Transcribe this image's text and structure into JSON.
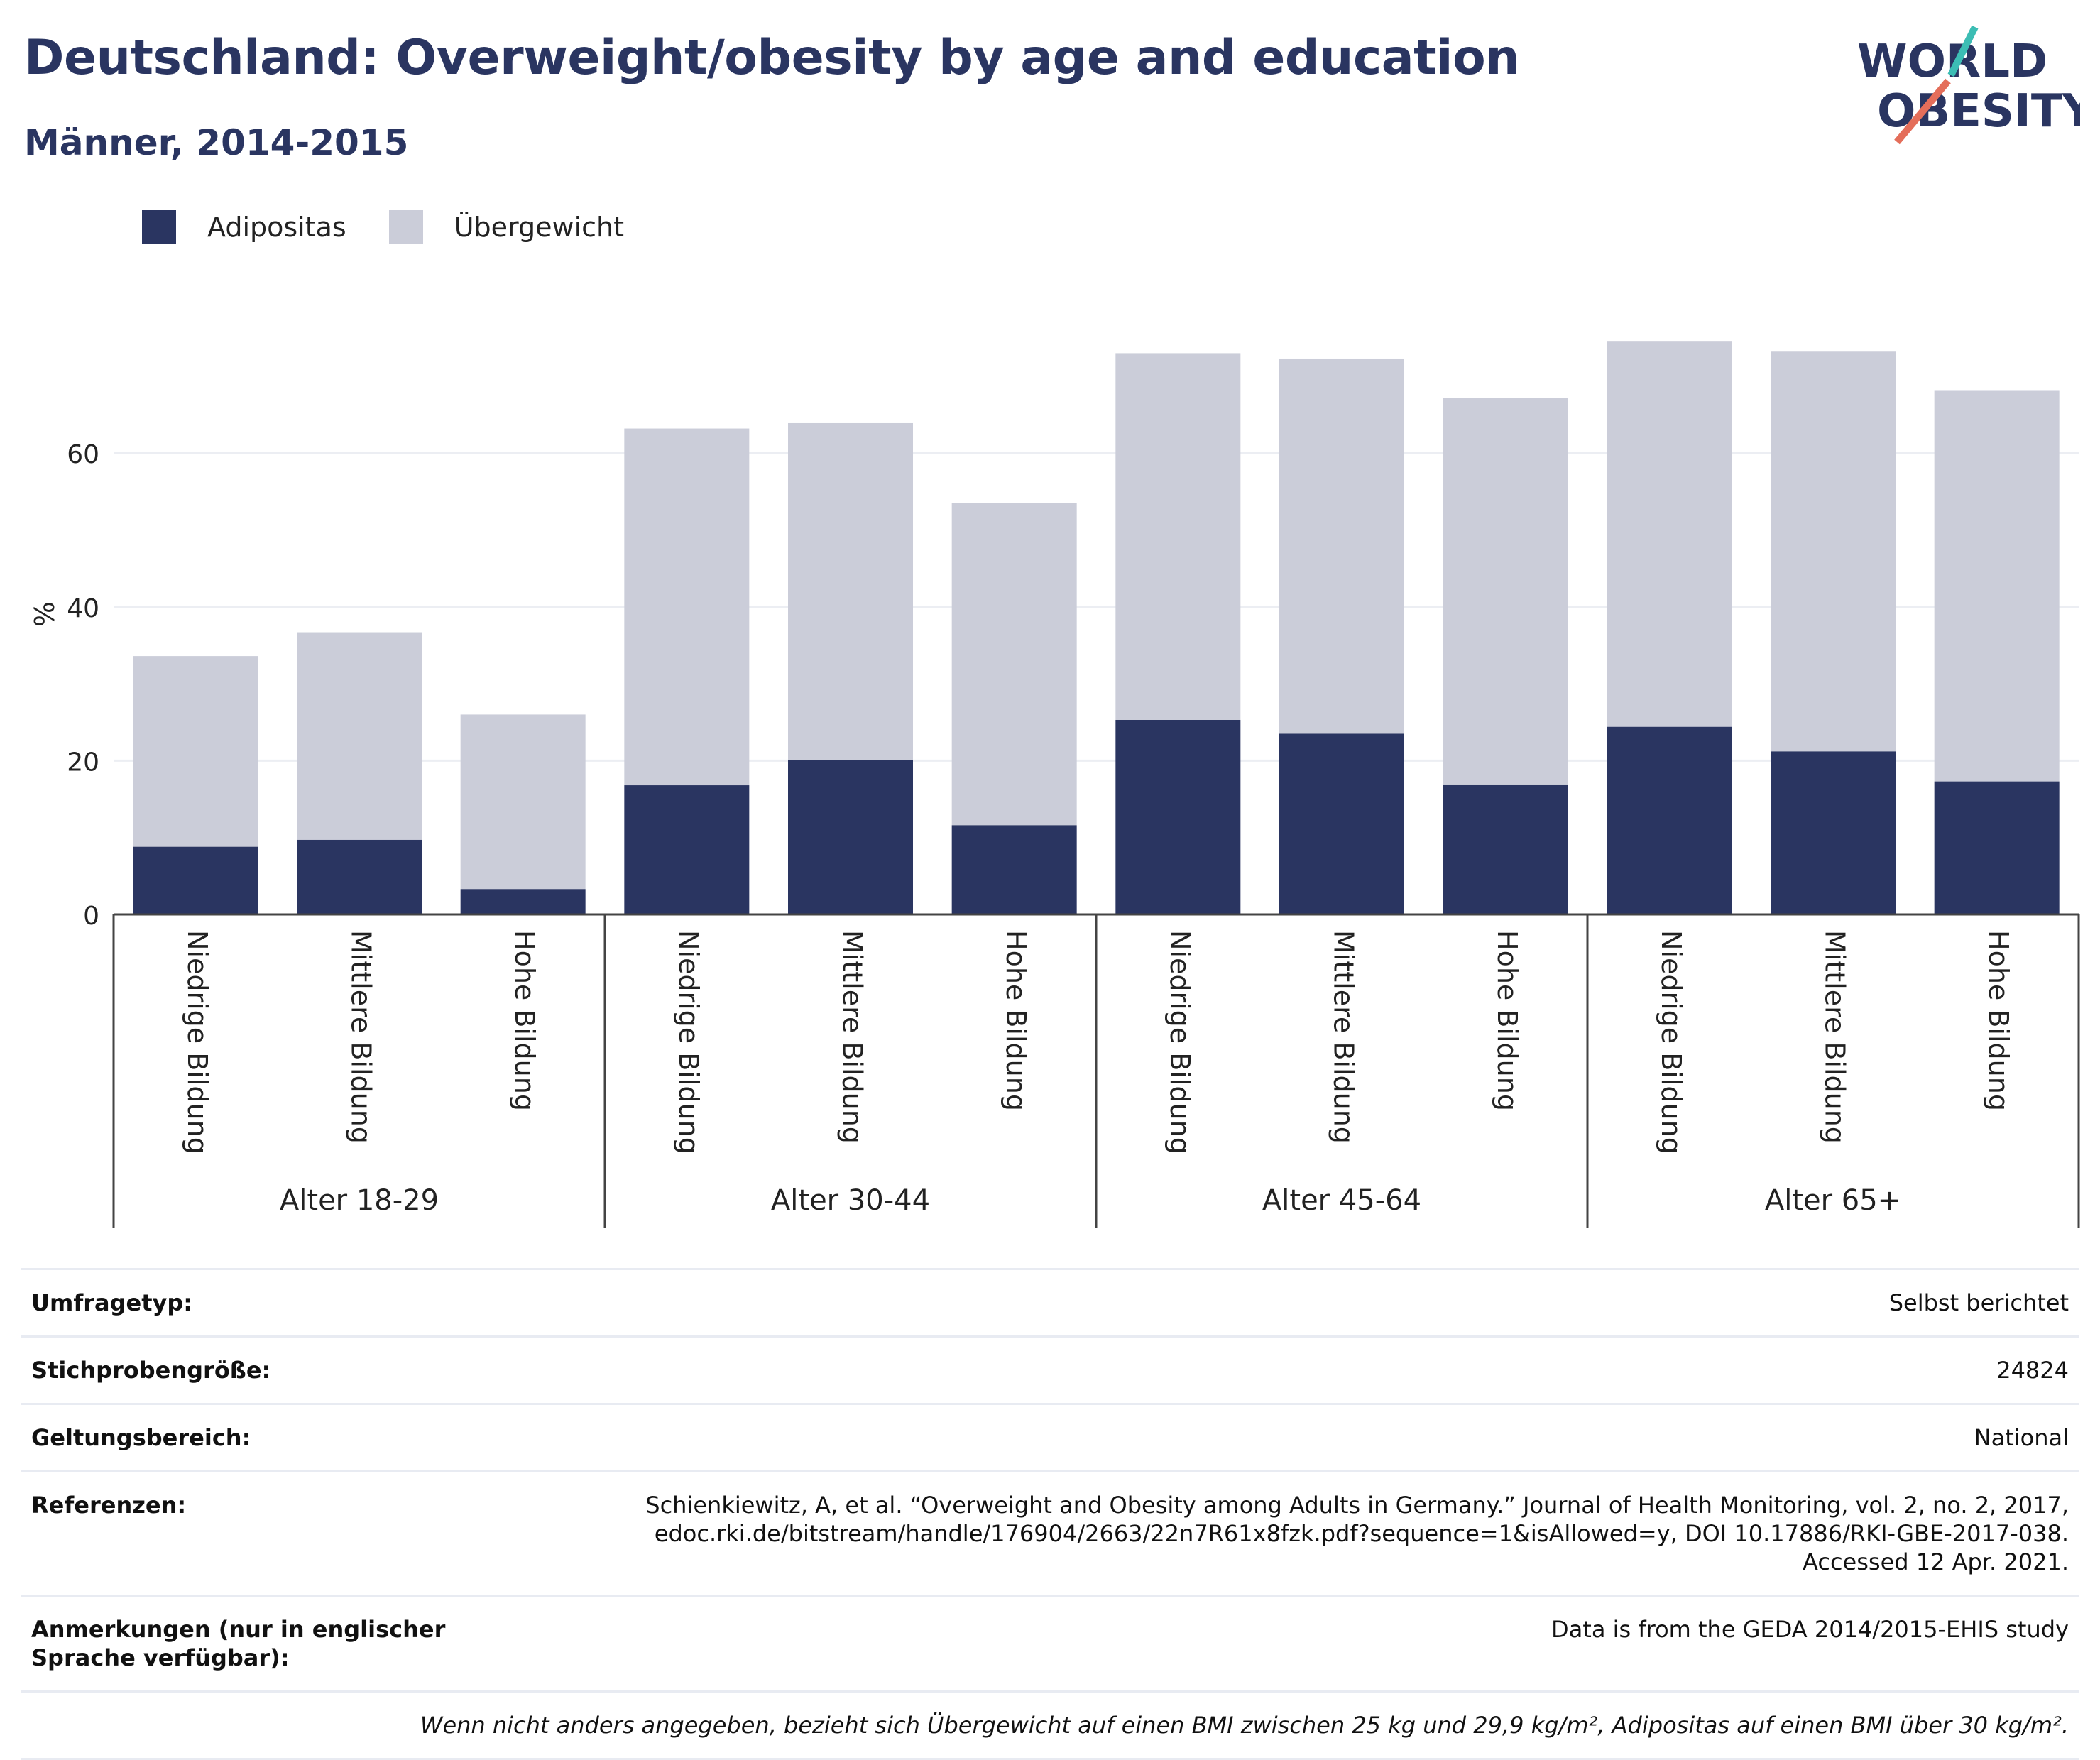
{
  "header": {
    "title": "Deutschland: Overweight/obesity by age and education",
    "subtitle": "Männer, 2014-2015",
    "logo": {
      "line1": "WORLD",
      "line2": "OBESITY"
    }
  },
  "legend": [
    {
      "label": "Adipositas",
      "color": "#2a3561"
    },
    {
      "label": "Übergewicht",
      "color": "#cbcdd9"
    }
  ],
  "chart_data": {
    "type": "bar",
    "stacked": true,
    "ylabel": "%",
    "ylim": [
      0,
      80
    ],
    "yticks": [
      0,
      20,
      40,
      60
    ],
    "grid": true,
    "legend_position": "top-left",
    "groups": [
      {
        "label": "Alter 18-29",
        "categories": [
          "Niedrige Bildung",
          "Mittlere Bildung",
          "Hohe Bildung"
        ]
      },
      {
        "label": "Alter 30-44",
        "categories": [
          "Niedrige Bildung",
          "Mittlere Bildung",
          "Hohe Bildung"
        ]
      },
      {
        "label": "Alter 45-64",
        "categories": [
          "Niedrige Bildung",
          "Mittlere Bildung",
          "Hohe Bildung"
        ]
      },
      {
        "label": "Alter 65+",
        "categories": [
          "Niedrige Bildung",
          "Mittlere Bildung",
          "Hohe Bildung"
        ]
      }
    ],
    "series": [
      {
        "name": "Adipositas",
        "color": "#2a3561",
        "values": [
          8.8,
          9.7,
          3.3,
          16.8,
          20.1,
          11.6,
          25.3,
          23.5,
          16.9,
          24.4,
          21.2,
          17.3
        ]
      },
      {
        "name": "Übergewicht",
        "color": "#cbcdd9",
        "values": [
          24.8,
          27.0,
          22.7,
          46.4,
          43.8,
          41.9,
          47.7,
          48.8,
          50.3,
          50.1,
          52.0,
          50.8
        ]
      }
    ]
  },
  "meta": [
    {
      "key": "Umfragetyp:",
      "lines": [
        "Selbst berichtet"
      ]
    },
    {
      "key": "Stichprobengröße:",
      "lines": [
        "24824"
      ]
    },
    {
      "key": "Geltungsbereich:",
      "lines": [
        "National"
      ]
    },
    {
      "key": "Referenzen:",
      "lines": [
        "Schienkiewitz, A, et al. “Overweight and Obesity among Adults in Germany.” Journal of Health Monitoring, vol. 2, no. 2, 2017,",
        "edoc.rki.de/bitstream/handle/176904/2663/22n7R61x8fzk.pdf?sequence=1&isAllowed=y, DOI 10.17886/RKI-GBE-2017-038.",
        "Accessed 12 Apr. 2021."
      ]
    },
    {
      "key": "Anmerkungen (nur in englischer Sprache verfügbar):",
      "lines": [
        "Data is from the GEDA 2014/2015-EHIS study"
      ]
    }
  ],
  "footnote": "Wenn nicht anders angegeben, bezieht sich Übergewicht auf einen BMI zwischen 25 kg und 29,9 kg/m², Adipositas auf einen BMI über 30 kg/m²."
}
